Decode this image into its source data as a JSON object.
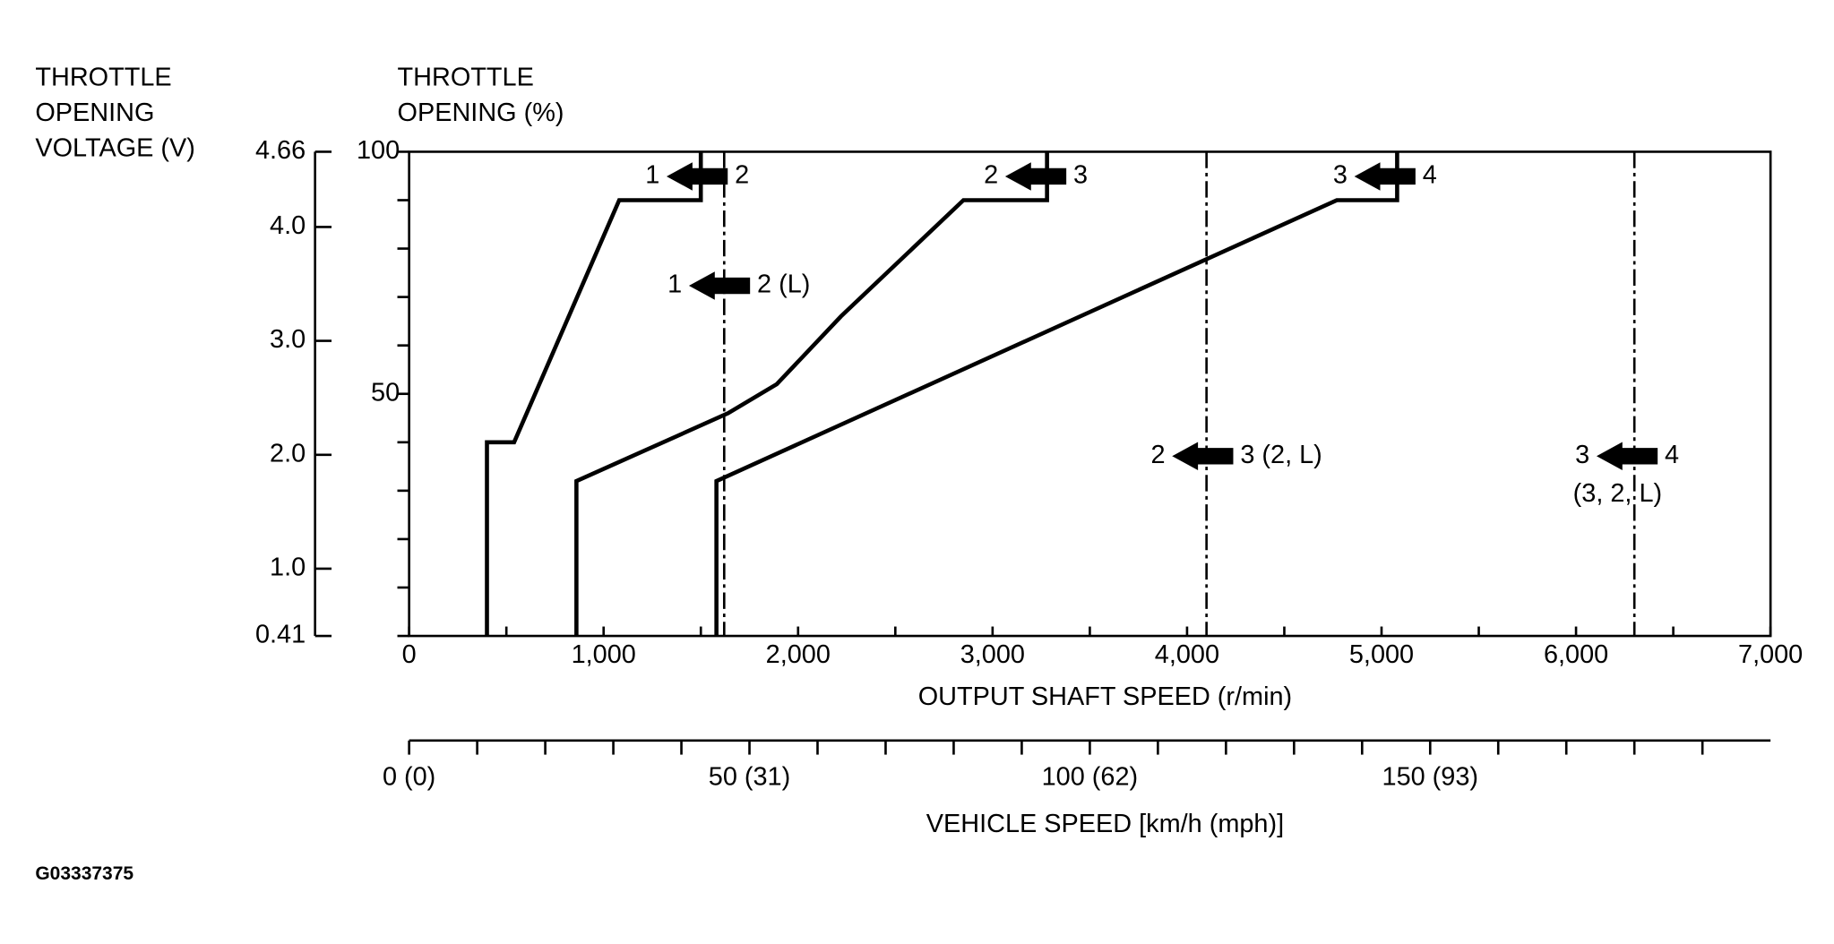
{
  "chart_data": {
    "type": "line",
    "color": "#000000",
    "y2_title": [
      "THROTTLE",
      "OPENING",
      "VOLTAGE (V)"
    ],
    "y_title": [
      "THROTTLE",
      "OPENING (%)"
    ],
    "x_title": "OUTPUT SHAFT SPEED (r/min)",
    "x2_title": "VEHICLE SPEED [km/h (mph)]",
    "figure_id": "G03337375",
    "xlim": [
      0,
      7000
    ],
    "xticks": [
      0,
      {
        "value": 500,
        "label": null
      },
      {
        "value": 1000,
        "label": "1,000"
      },
      {
        "value": 1500,
        "label": null
      },
      {
        "value": 2000,
        "label": "2,000"
      },
      {
        "value": 2500,
        "label": null
      },
      {
        "value": 3000,
        "label": "3,000"
      },
      {
        "value": 3500,
        "label": null
      },
      {
        "value": 4000,
        "label": "4,000"
      },
      {
        "value": 4500,
        "label": null
      },
      {
        "value": 5000,
        "label": "5,000"
      },
      {
        "value": 5500,
        "label": null
      },
      {
        "value": 6000,
        "label": "6,000"
      },
      {
        "value": 6500,
        "label": null
      },
      {
        "value": 7000,
        "label": "7,000"
      }
    ],
    "ylim": [
      0,
      100
    ],
    "yticks": [
      {
        "value": 0,
        "label": null
      },
      {
        "value": 10,
        "label": null
      },
      {
        "value": 20,
        "label": null
      },
      {
        "value": 30,
        "label": null
      },
      {
        "value": 40,
        "label": null
      },
      50,
      {
        "value": 60,
        "label": null
      },
      {
        "value": 70,
        "label": null
      },
      {
        "value": 80,
        "label": null
      },
      {
        "value": 90,
        "label": null
      },
      100
    ],
    "y2lim": [
      0.41,
      4.66
    ],
    "y2ticks": [
      0.41,
      {
        "value": 1,
        "label": "1.0"
      },
      {
        "value": 2,
        "label": "2.0"
      },
      {
        "value": 3,
        "label": "3.0"
      },
      {
        "value": 4,
        "label": "4.0"
      },
      4.66
    ],
    "x2lim": [
      0,
      200
    ],
    "x2ticks": [
      {
        "value": 0,
        "label": "0 (0)"
      },
      {
        "value": 10,
        "label": null
      },
      {
        "value": 20,
        "label": null
      },
      {
        "value": 30,
        "label": null
      },
      {
        "value": 40,
        "label": null
      },
      {
        "value": 50,
        "label": "50 (31)"
      },
      {
        "value": 60,
        "label": null
      },
      {
        "value": 70,
        "label": null
      },
      {
        "value": 80,
        "label": null
      },
      {
        "value": 90,
        "label": null
      },
      {
        "value": 100,
        "label": "100 (62)"
      },
      {
        "value": 110,
        "label": null
      },
      {
        "value": 120,
        "label": null
      },
      {
        "value": 130,
        "label": null
      },
      {
        "value": 140,
        "label": null
      },
      {
        "value": 150,
        "label": "150 (93)"
      },
      {
        "value": 160,
        "label": null
      },
      {
        "value": 170,
        "label": null
      },
      {
        "value": 180,
        "label": null
      },
      {
        "value": 190,
        "label": null
      }
    ],
    "series": [
      {
        "x": [
          400,
          400,
          540,
          1080,
          1500,
          1500
        ],
        "values": [
          0,
          40,
          40,
          90,
          90,
          100
        ]
      },
      {
        "x": [
          860,
          860,
          1640,
          1890,
          2220,
          2850,
          3280,
          3280
        ],
        "values": [
          0,
          32,
          46,
          52,
          66,
          90,
          90,
          100
        ]
      },
      {
        "x": [
          1580,
          1580,
          4770,
          5080,
          5080
        ],
        "values": [
          0,
          32,
          90,
          90,
          100
        ]
      }
    ],
    "vlines": [
      {
        "x": 1620
      },
      {
        "x": 4100
      },
      {
        "x": 6300
      }
    ],
    "annotations": [
      {
        "left": "1",
        "right": "2"
      },
      {
        "left": "2",
        "right": "3"
      },
      {
        "left": "3",
        "right": "4"
      },
      {
        "left": "1",
        "right": "2 (L)"
      },
      {
        "left": "2",
        "right": "3 (2, L)"
      },
      {
        "left": "3",
        "right": "4",
        "note": "(3, 2, L)"
      }
    ]
  }
}
